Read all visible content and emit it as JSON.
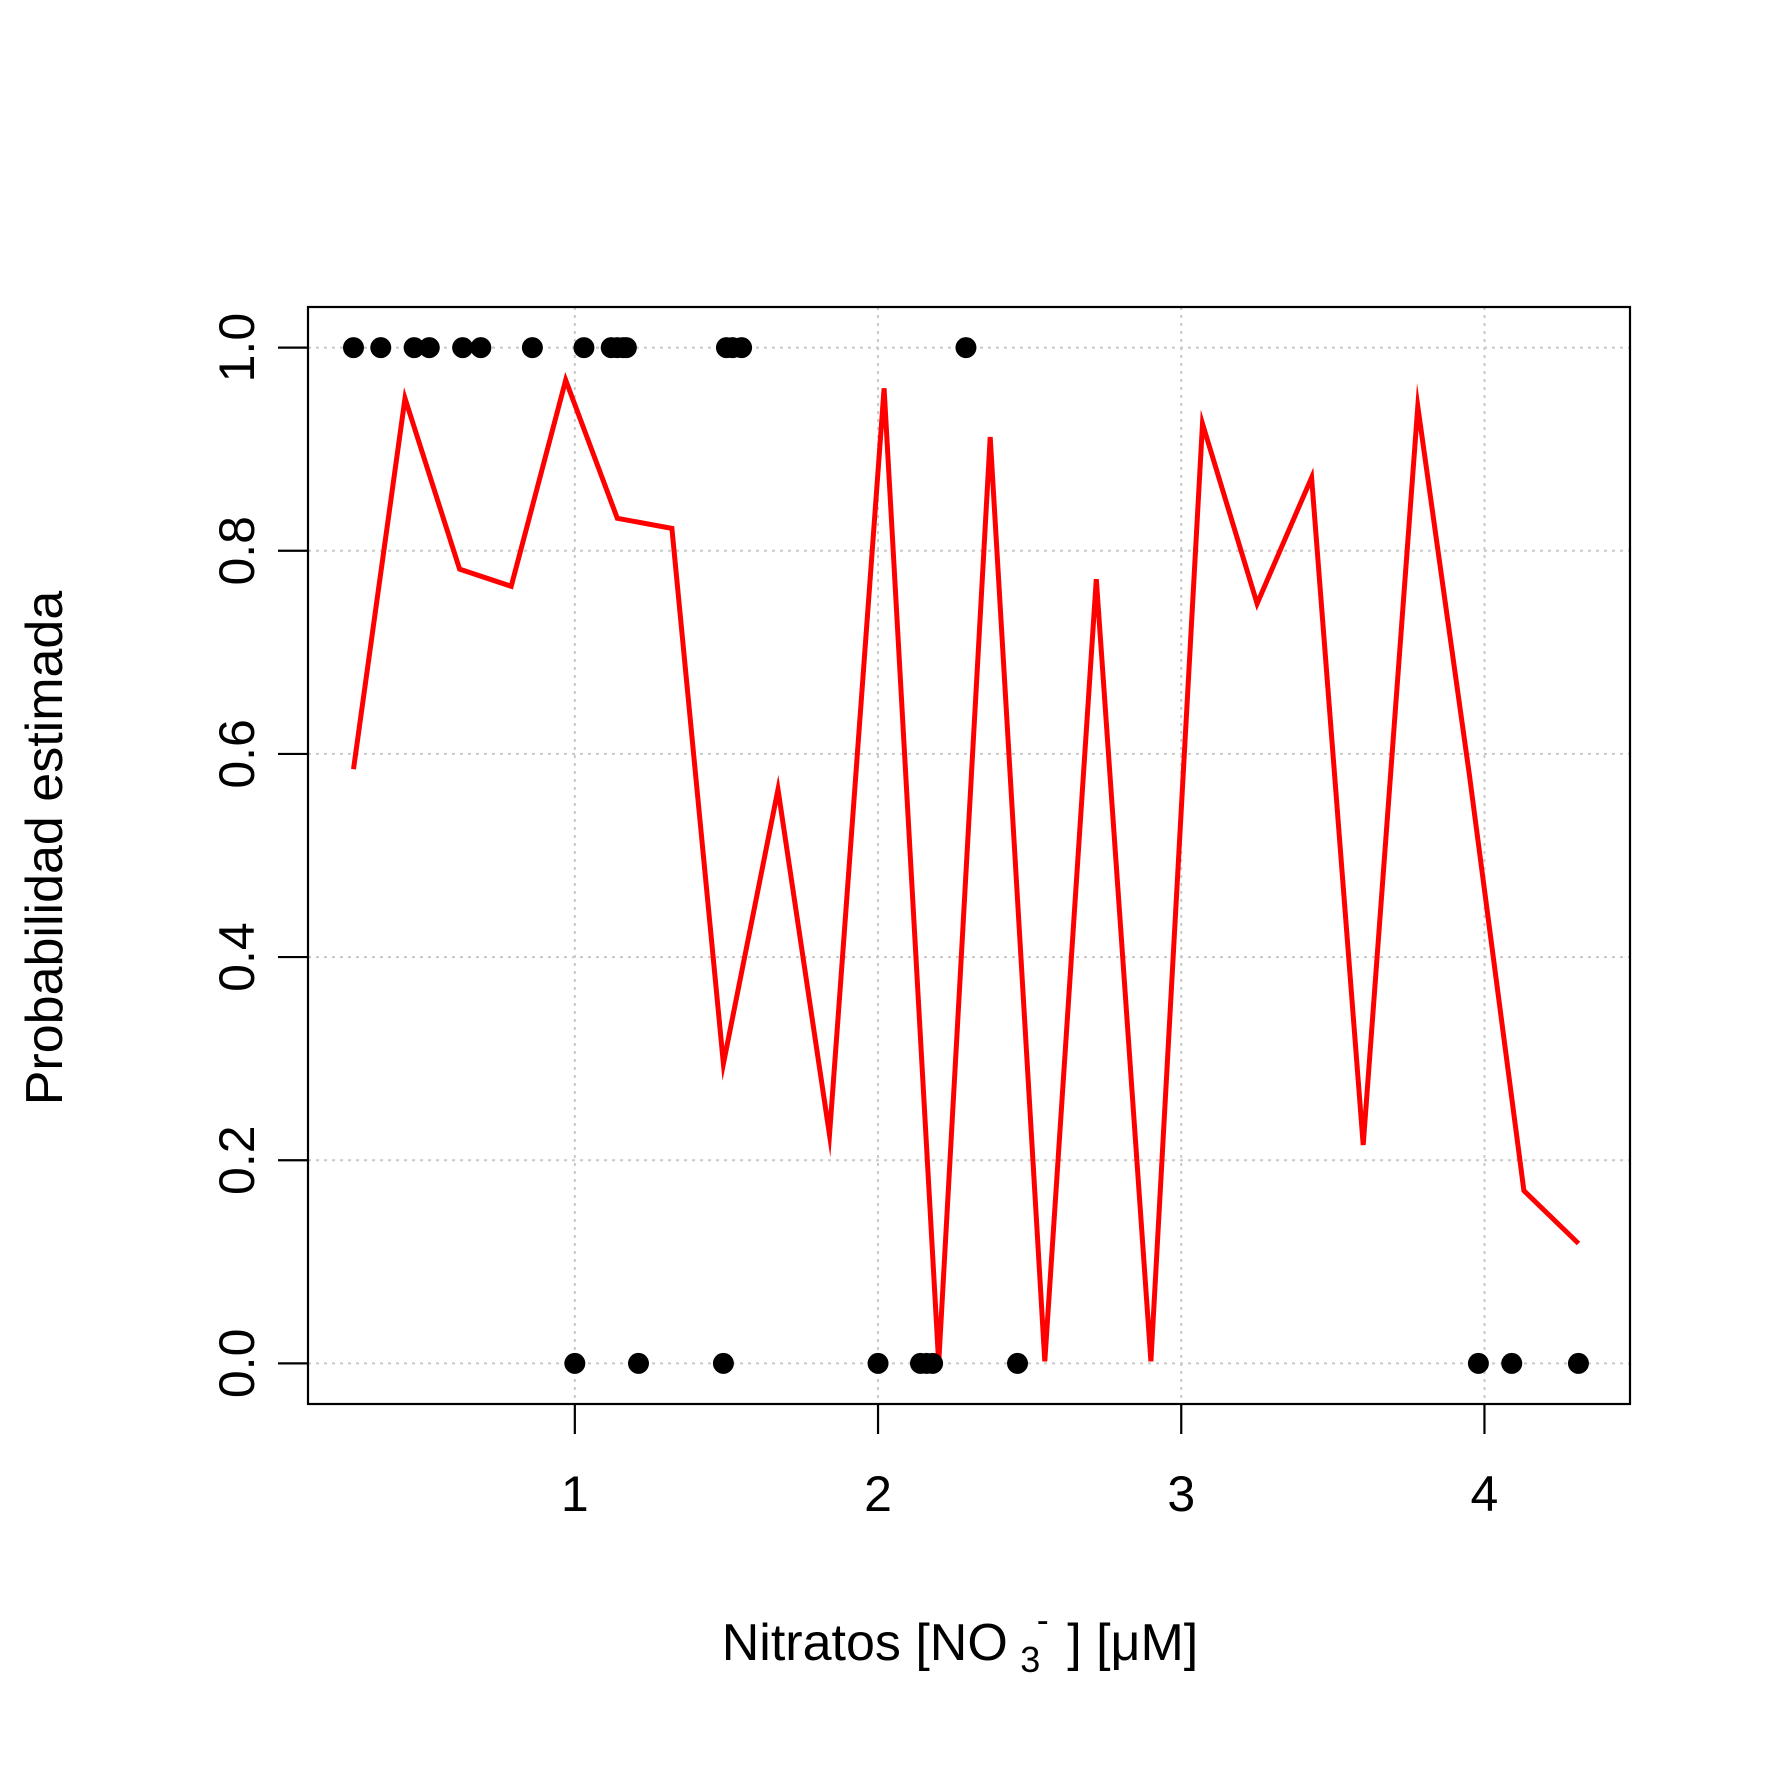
{
  "chart_data": {
    "type": "scatter",
    "xlabel": {
      "prefix": "Nitratos [NO",
      "subscript": "3",
      "superscript": "-",
      "suffix": "] [μM]"
    },
    "ylabel": "Probabilidad estimada",
    "xlim": [
      0.12,
      4.48
    ],
    "ylim": [
      -0.04,
      1.04
    ],
    "x_ticks": [
      "1",
      "2",
      "3",
      "4"
    ],
    "y_ticks": [
      "0.0",
      "0.2",
      "0.4",
      "0.6",
      "0.8",
      "1.0"
    ],
    "grid": true,
    "series": [
      {
        "kind": "points",
        "color": "#000000",
        "x": [
          0.27,
          0.36,
          0.47,
          0.52,
          0.63,
          0.69,
          0.86,
          1.03,
          1.12,
          1.14,
          1.16,
          1.17,
          1.5,
          1.52,
          1.55,
          2.29,
          1.0,
          1.21,
          1.49,
          2.0,
          2.14,
          2.16,
          2.18,
          2.46,
          3.98,
          4.09,
          4.31
        ],
        "y": [
          1,
          1,
          1,
          1,
          1,
          1,
          1,
          1,
          1,
          1,
          1,
          1,
          1,
          1,
          1,
          1,
          0,
          0,
          0,
          0,
          0,
          0,
          0,
          0,
          0,
          0,
          0
        ]
      },
      {
        "kind": "line",
        "color": "#ff0000",
        "x": [
          0.27,
          0.44,
          0.62,
          0.79,
          0.97,
          1.14,
          1.32,
          1.49,
          1.67,
          1.84,
          2.02,
          2.2,
          2.37,
          2.55,
          2.72,
          2.9,
          3.07,
          3.25,
          3.43,
          3.6,
          3.78,
          3.95,
          4.13,
          4.31
        ],
        "y": [
          0.585,
          0.95,
          0.782,
          0.765,
          0.968,
          0.832,
          0.822,
          0.295,
          0.565,
          0.225,
          0.96,
          0.0,
          0.912,
          0.002,
          0.772,
          0.002,
          0.925,
          0.748,
          0.872,
          0.215,
          0.942,
          0.58,
          0.17,
          0.118
        ]
      }
    ]
  }
}
